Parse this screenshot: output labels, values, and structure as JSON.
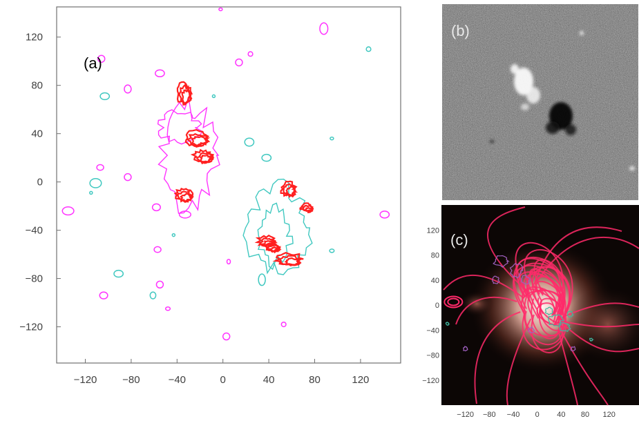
{
  "figure": {
    "colors": {
      "positive_contour": "#ff33ff",
      "negative_contour": "#40c8c0",
      "current_contour": "#ff2020",
      "field_line": "#ff2a6a",
      "panel_c_positive": "#a060c0",
      "panel_c_negative": "#40b8a0"
    }
  },
  "chart_data": [
    {
      "type": "contour",
      "panel_label": "(a)",
      "xlim": [
        -145,
        155
      ],
      "ylim": [
        -150,
        145
      ],
      "x_ticks": [
        -120,
        -80,
        -40,
        0,
        40,
        80,
        120
      ],
      "y_ticks": [
        120,
        80,
        40,
        0,
        -40,
        -80,
        -120
      ],
      "grid": false,
      "series": [
        {
          "polarity": "positive",
          "color": "#ff33ff",
          "blobs": [
            [
              -135,
              -24,
              5,
              3.5
            ],
            [
              -106,
              102,
              3,
              3
            ],
            [
              -104,
              -94,
              3.5,
              3
            ],
            [
              -107,
              12,
              3,
              2.5
            ],
            [
              -83,
              77,
              3,
              3.5
            ],
            [
              -83,
              4,
              3,
              3
            ],
            [
              -58,
              -21,
              3.5,
              3
            ],
            [
              -57,
              -56,
              3,
              2.5
            ],
            [
              -55,
              -85,
              3,
              3
            ],
            [
              -48,
              -105,
              2,
              1.5
            ],
            [
              -55,
              90,
              4,
              3
            ],
            [
              -33,
              -27,
              5,
              3
            ],
            [
              -2,
              143,
              1.5,
              1
            ],
            [
              14,
              99,
              3,
              3
            ],
            [
              24,
              106,
              2,
              2
            ],
            [
              5,
              -66,
              1.5,
              2
            ],
            [
              3,
              -128,
              3,
              3
            ],
            [
              53,
              -118,
              2,
              2
            ],
            [
              88,
              127,
              3.5,
              5
            ],
            [
              141,
              -27,
              4,
              3
            ]
          ]
        },
        {
          "polarity": "negative",
          "color": "#40c8c0",
          "blobs": [
            [
              -103,
              71,
              4,
              3
            ],
            [
              -111,
              -1,
              5,
              4
            ],
            [
              -91,
              -76,
              4,
              3
            ],
            [
              -61,
              -94,
              2.5,
              3
            ],
            [
              -43,
              -44,
              1,
              1
            ],
            [
              -8,
              71,
              1,
              1
            ],
            [
              23,
              33,
              4,
              3.5
            ],
            [
              38,
              20,
              4,
              3
            ],
            [
              34,
              -81,
              3,
              5
            ],
            [
              95,
              -57,
              2,
              1.5
            ],
            [
              95,
              36,
              1.5,
              1
            ],
            [
              127,
              110,
              2,
              2
            ],
            [
              -115,
              -9,
              1,
              1
            ]
          ]
        },
        {
          "polarity": "current",
          "color": "#ff2020",
          "blobs": [
            [
              -33,
              72,
              6,
              9
            ],
            [
              -22,
              35,
              10,
              6
            ],
            [
              -16,
              20,
              8,
              5
            ],
            [
              -33,
              -12,
              7,
              5
            ],
            [
              58,
              -7,
              6,
              6
            ],
            [
              74,
              -22,
              5,
              3
            ],
            [
              39,
              -50,
              7,
              4
            ],
            [
              59,
              -65,
              10,
              5
            ],
            [
              44,
              -55,
              6,
              3
            ]
          ]
        }
      ]
    },
    {
      "type": "image",
      "panel_label": "(b)",
      "features": [
        "bright-positive-region",
        "dark-negative-spot"
      ]
    },
    {
      "type": "field-line-overlay",
      "panel_label": "(c)",
      "x_ticks": [
        -120,
        -80,
        -40,
        0,
        40,
        80,
        120
      ],
      "y_ticks": [
        120,
        80,
        40,
        0,
        -40,
        -80,
        -120
      ],
      "xlim": [
        -160,
        170
      ],
      "ylim": [
        -160,
        160
      ]
    }
  ]
}
